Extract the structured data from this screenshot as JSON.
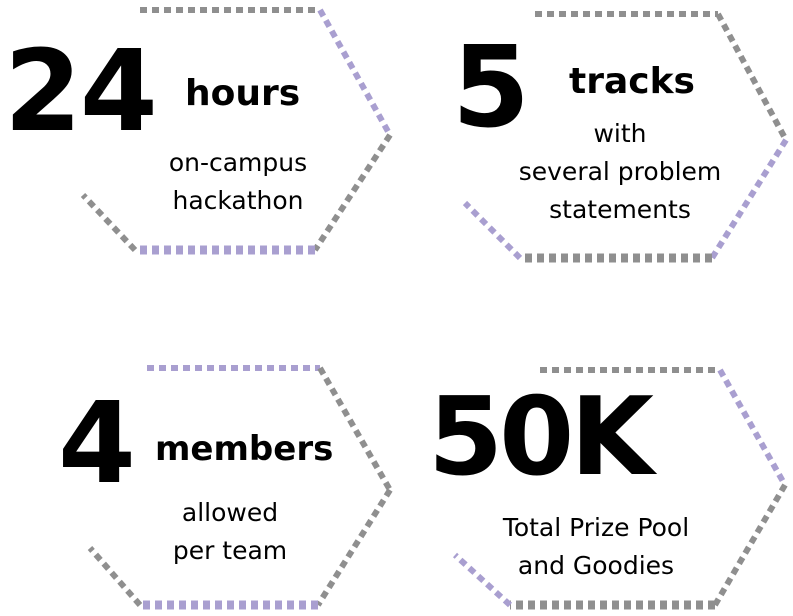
{
  "colors": {
    "gray": "#8f8f8f",
    "purple": "#a99fd0",
    "text": "#000000"
  },
  "stats": [
    {
      "value": "24",
      "unit": "hours",
      "desc_lines": [
        "on-campus",
        "hackathon"
      ]
    },
    {
      "value": "5",
      "unit": "tracks",
      "desc_lines": [
        "with",
        "several problem",
        "statements"
      ]
    },
    {
      "value": "4",
      "unit": "members",
      "desc_lines": [
        "allowed",
        "per team"
      ]
    },
    {
      "value": "50K",
      "unit": "",
      "desc_lines": [
        "Total Prize Pool",
        "and Goodies"
      ]
    }
  ]
}
